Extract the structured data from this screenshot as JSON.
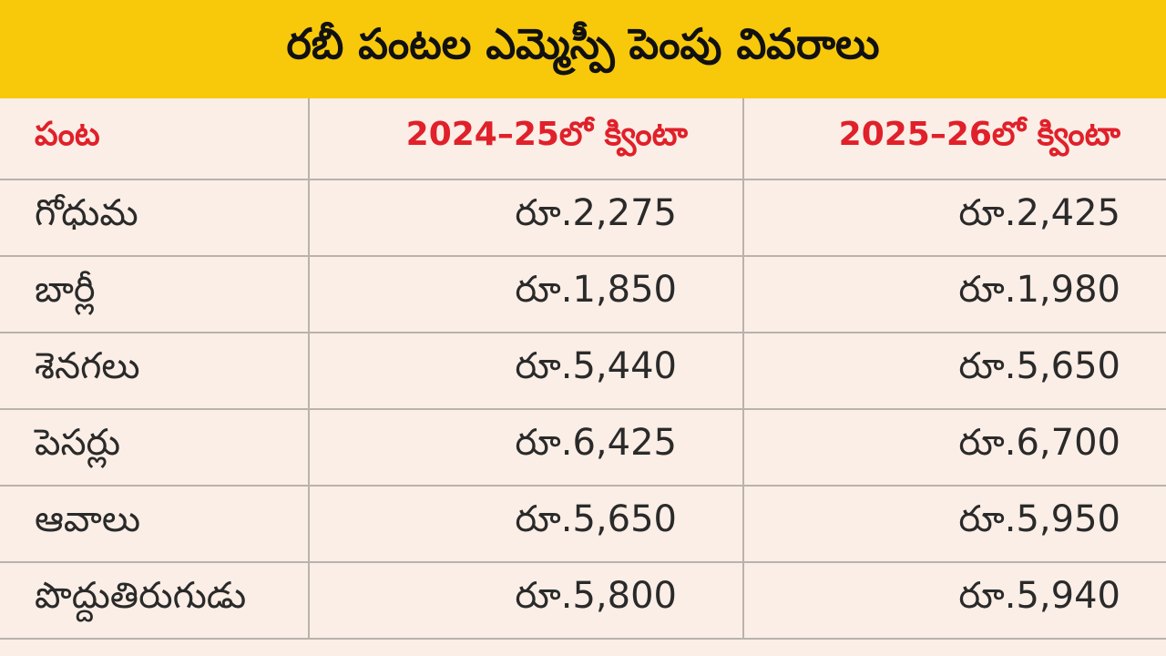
{
  "header": {
    "title": "రబీ పంటల ఎమ్మెస్పీ పెంపు వివరాలు"
  },
  "table": {
    "columns": [
      "పంట",
      "2024–25లో క్వింటా",
      "2025–26లో క్వింటా"
    ],
    "rows": [
      [
        "గోధుమ",
        "రూ.2,275",
        "రూ.2,425"
      ],
      [
        "బార్లీ",
        "రూ.1,850",
        "రూ.1,980"
      ],
      [
        "శెనగలు",
        "రూ.5,440",
        "రూ.5,650"
      ],
      [
        "పెసర్లు",
        "రూ.6,425",
        "రూ.6,700"
      ],
      [
        "ఆవాలు",
        "రూ.5,650",
        "రూ.5,950"
      ],
      [
        "పొద్దుతిరుగుడు",
        "రూ.5,800",
        "రూ.5,940"
      ]
    ]
  }
}
